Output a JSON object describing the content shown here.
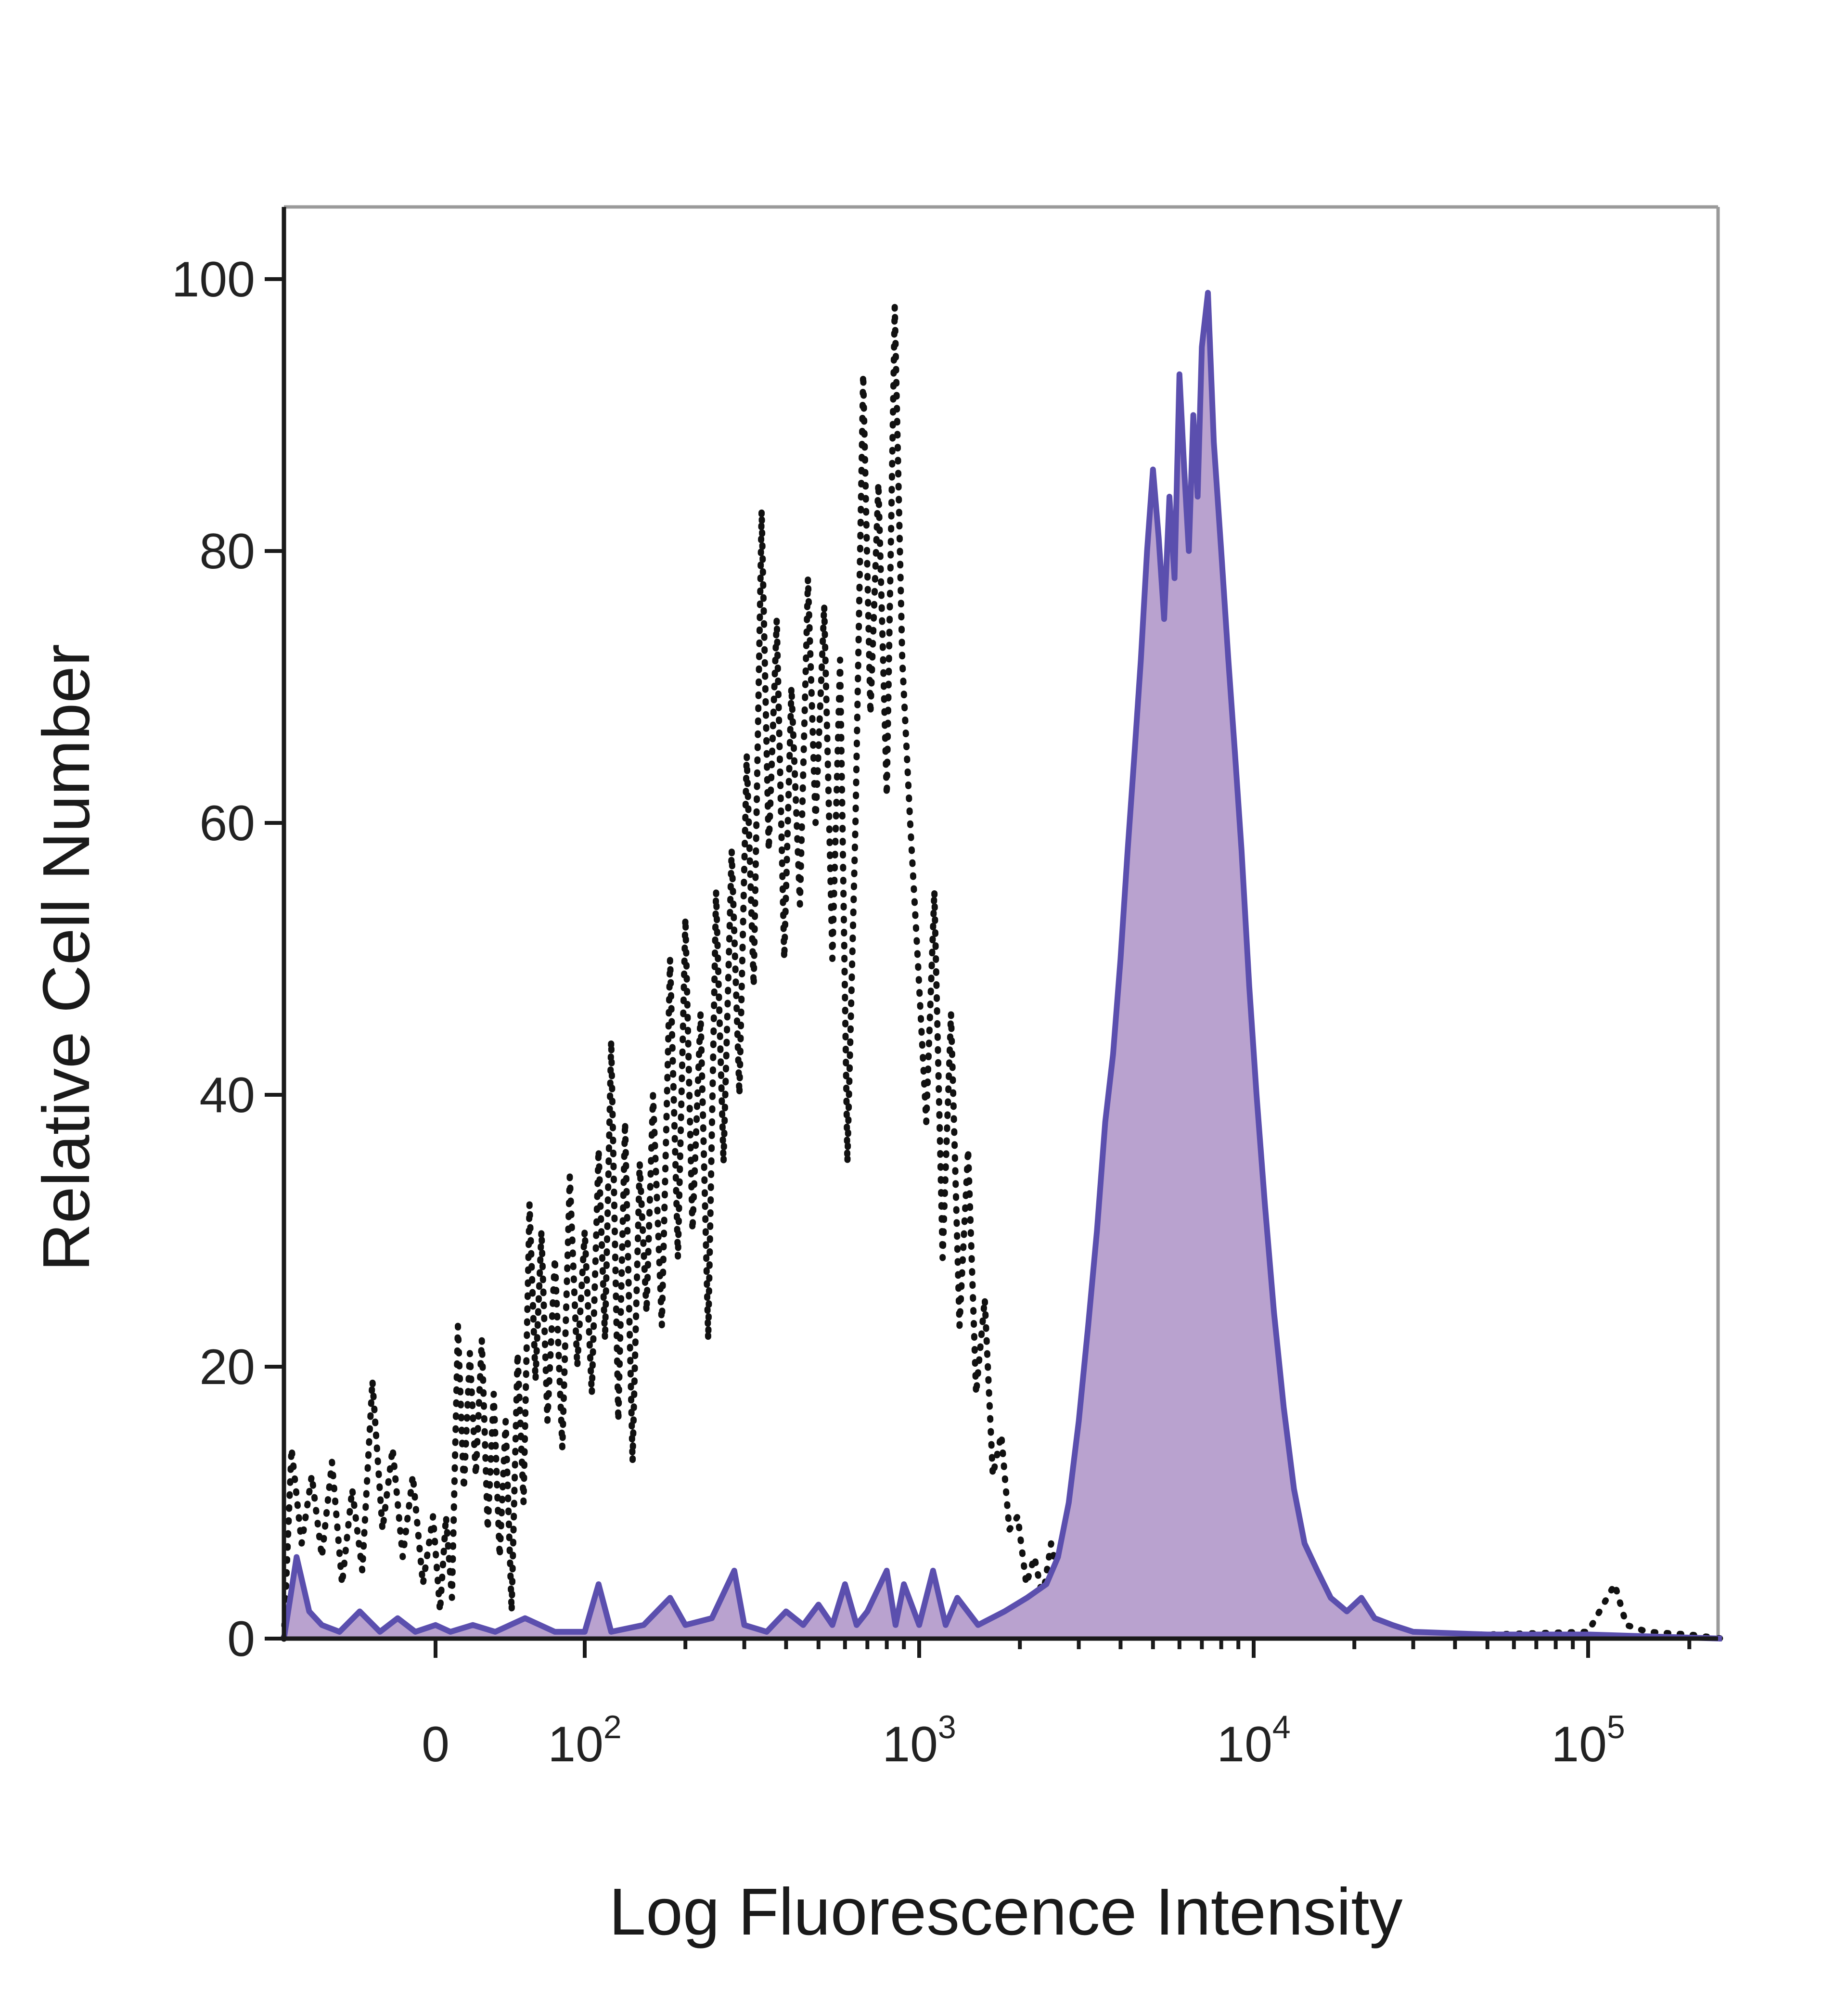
{
  "chart_data": {
    "type": "area",
    "xlabel": "Log Fluorescence Intensity",
    "ylabel": "Relative Cell Number",
    "xscale": "biexponential",
    "xlim": [
      -60,
      250000
    ],
    "ylim": [
      0,
      105
    ],
    "x_ticks": [
      {
        "value": 0,
        "base": "0",
        "exp": ""
      },
      {
        "value": 100,
        "base": "10",
        "exp": "2"
      },
      {
        "value": 1000,
        "base": "10",
        "exp": "3"
      },
      {
        "value": 10000,
        "base": "10",
        "exp": "4"
      },
      {
        "value": 100000,
        "base": "10",
        "exp": "5"
      }
    ],
    "y_ticks": [
      0,
      20,
      40,
      60,
      80,
      100
    ],
    "grid": false,
    "legend": "none",
    "series": [
      {
        "style": "dotted",
        "color": "#111111",
        "fill": "none",
        "points": [
          [
            -60,
            0
          ],
          [
            -57,
            14
          ],
          [
            -53,
            7
          ],
          [
            -49,
            12
          ],
          [
            -45,
            6
          ],
          [
            -41,
            13
          ],
          [
            -37,
            4
          ],
          [
            -33,
            11
          ],
          [
            -29,
            5
          ],
          [
            -25,
            19
          ],
          [
            -21,
            8
          ],
          [
            -17,
            14
          ],
          [
            -13,
            6
          ],
          [
            -9,
            12
          ],
          [
            -5,
            4
          ],
          [
            -1,
            9
          ],
          [
            3,
            2
          ],
          [
            7,
            9
          ],
          [
            11,
            3
          ],
          [
            15,
            23
          ],
          [
            19,
            11
          ],
          [
            23,
            21
          ],
          [
            27,
            12
          ],
          [
            31,
            22
          ],
          [
            35,
            8
          ],
          [
            39,
            18
          ],
          [
            43,
            6
          ],
          [
            47,
            16
          ],
          [
            51,
            2
          ],
          [
            55,
            21
          ],
          [
            59,
            10
          ],
          [
            63,
            32
          ],
          [
            67,
            19
          ],
          [
            71,
            30
          ],
          [
            75,
            16
          ],
          [
            80,
            28
          ],
          [
            85,
            14
          ],
          [
            90,
            34
          ],
          [
            95,
            20
          ],
          [
            100,
            30
          ],
          [
            105,
            18
          ],
          [
            110,
            36
          ],
          [
            115,
            22
          ],
          [
            120,
            44
          ],
          [
            126,
            16
          ],
          [
            132,
            38
          ],
          [
            139,
            13
          ],
          [
            146,
            35
          ],
          [
            153,
            24
          ],
          [
            160,
            40
          ],
          [
            170,
            23
          ],
          [
            180,
            50
          ],
          [
            190,
            28
          ],
          [
            200,
            53
          ],
          [
            210,
            30
          ],
          [
            222,
            46
          ],
          [
            234,
            22
          ],
          [
            247,
            55
          ],
          [
            260,
            35
          ],
          [
            275,
            58
          ],
          [
            290,
            40
          ],
          [
            305,
            65
          ],
          [
            320,
            48
          ],
          [
            338,
            83
          ],
          [
            355,
            58
          ],
          [
            375,
            75
          ],
          [
            395,
            50
          ],
          [
            415,
            70
          ],
          [
            440,
            54
          ],
          [
            465,
            78
          ],
          [
            490,
            60
          ],
          [
            520,
            76
          ],
          [
            550,
            50
          ],
          [
            580,
            72
          ],
          [
            610,
            35
          ],
          [
            645,
            60
          ],
          [
            680,
            93
          ],
          [
            715,
            68
          ],
          [
            755,
            85
          ],
          [
            800,
            62
          ],
          [
            845,
            98
          ],
          [
            890,
            72
          ],
          [
            940,
            60
          ],
          [
            990,
            50
          ],
          [
            1050,
            38
          ],
          [
            1110,
            55
          ],
          [
            1175,
            28
          ],
          [
            1245,
            46
          ],
          [
            1320,
            23
          ],
          [
            1400,
            36
          ],
          [
            1480,
            18
          ],
          [
            1570,
            25
          ],
          [
            1660,
            12
          ],
          [
            1760,
            15
          ],
          [
            1860,
            8
          ],
          [
            1970,
            9
          ],
          [
            2090,
            4
          ],
          [
            2210,
            6
          ],
          [
            2340,
            3
          ],
          [
            2480,
            7
          ],
          [
            2630,
            4
          ],
          [
            2790,
            9
          ],
          [
            2950,
            4
          ],
          [
            3130,
            6
          ],
          [
            3310,
            3
          ],
          [
            3510,
            7
          ],
          [
            3720,
            4
          ],
          [
            3940,
            6
          ],
          [
            4170,
            3
          ],
          [
            4420,
            5
          ],
          [
            4680,
            2
          ],
          [
            4960,
            3
          ],
          [
            5250,
            1
          ],
          [
            5560,
            2
          ],
          [
            6000,
            0.5
          ],
          [
            10000,
            0.3
          ],
          [
            20000,
            0.3
          ],
          [
            50000,
            0.3
          ],
          [
            100000,
            0.5
          ],
          [
            120000,
            4
          ],
          [
            130000,
            1
          ],
          [
            150000,
            0.5
          ],
          [
            200000,
            0.3
          ],
          [
            250000,
            0
          ]
        ]
      },
      {
        "style": "solid",
        "color": "#5b4fae",
        "fill": "#b9a2cf",
        "points": [
          [
            -60,
            0
          ],
          [
            -55,
            6
          ],
          [
            -50,
            2
          ],
          [
            -45,
            1
          ],
          [
            -38,
            0.5
          ],
          [
            -30,
            2
          ],
          [
            -22,
            0.5
          ],
          [
            -15,
            1.5
          ],
          [
            -8,
            0.5
          ],
          [
            0,
            1
          ],
          [
            10,
            0.5
          ],
          [
            25,
            1
          ],
          [
            40,
            0.5
          ],
          [
            60,
            1.5
          ],
          [
            80,
            0.5
          ],
          [
            100,
            0.5
          ],
          [
            110,
            4
          ],
          [
            120,
            0.5
          ],
          [
            150,
            1
          ],
          [
            180,
            3
          ],
          [
            200,
            1
          ],
          [
            240,
            1.5
          ],
          [
            280,
            5
          ],
          [
            300,
            1
          ],
          [
            350,
            0.5
          ],
          [
            400,
            2
          ],
          [
            450,
            1
          ],
          [
            500,
            2.5
          ],
          [
            550,
            1
          ],
          [
            600,
            4
          ],
          [
            650,
            1
          ],
          [
            700,
            2
          ],
          [
            800,
            5
          ],
          [
            850,
            1
          ],
          [
            900,
            4
          ],
          [
            1000,
            1
          ],
          [
            1100,
            5
          ],
          [
            1200,
            1
          ],
          [
            1300,
            3
          ],
          [
            1500,
            1
          ],
          [
            1800,
            2
          ],
          [
            2100,
            3
          ],
          [
            2400,
            4
          ],
          [
            2600,
            6
          ],
          [
            2800,
            10
          ],
          [
            3000,
            16
          ],
          [
            3200,
            23
          ],
          [
            3400,
            30
          ],
          [
            3600,
            38
          ],
          [
            3800,
            43
          ],
          [
            4000,
            50
          ],
          [
            4200,
            58
          ],
          [
            4400,
            65
          ],
          [
            4600,
            72
          ],
          [
            4800,
            80
          ],
          [
            5000,
            86
          ],
          [
            5200,
            81
          ],
          [
            5400,
            75
          ],
          [
            5600,
            84
          ],
          [
            5800,
            78
          ],
          [
            6000,
            93
          ],
          [
            6200,
            86
          ],
          [
            6400,
            80
          ],
          [
            6600,
            90
          ],
          [
            6800,
            84
          ],
          [
            7000,
            95
          ],
          [
            7300,
            99
          ],
          [
            7600,
            88
          ],
          [
            8000,
            80
          ],
          [
            8400,
            72
          ],
          [
            8800,
            65
          ],
          [
            9200,
            58
          ],
          [
            9700,
            48
          ],
          [
            10200,
            40
          ],
          [
            10800,
            32
          ],
          [
            11500,
            24
          ],
          [
            12300,
            17
          ],
          [
            13200,
            11
          ],
          [
            14200,
            7
          ],
          [
            15500,
            5
          ],
          [
            17000,
            3
          ],
          [
            19000,
            2
          ],
          [
            21000,
            3
          ],
          [
            23000,
            1.5
          ],
          [
            26000,
            1
          ],
          [
            30000,
            0.5
          ],
          [
            50000,
            0.3
          ],
          [
            100000,
            0.3
          ],
          [
            250000,
            0
          ]
        ]
      }
    ]
  }
}
